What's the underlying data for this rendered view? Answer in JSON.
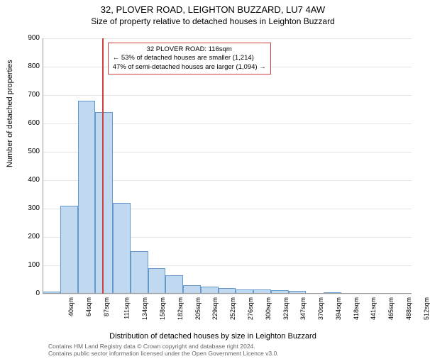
{
  "title": "32, PLOVER ROAD, LEIGHTON BUZZARD, LU7 4AW",
  "subtitle": "Size of property relative to detached houses in Leighton Buzzard",
  "ylabel": "Number of detached properties",
  "xlabel": "Distribution of detached houses by size in Leighton Buzzard",
  "license1": "Contains HM Land Registry data © Crown copyright and database right 2024.",
  "license2": "Contains public sector information licensed under the Open Government Licence v3.0.",
  "chart": {
    "type": "histogram",
    "ylim": [
      0,
      900
    ],
    "ytick_step": 100,
    "background_color": "#ffffff",
    "grid_color": "#e6e6e6",
    "axis_color": "#999999",
    "bar_fill": "#c0d8f0",
    "bar_stroke": "#6699cc",
    "bar_stroke_width": 1,
    "vline_color": "#d04040",
    "vline_x_value": 116,
    "callout_border": "#d04040",
    "callout_lines": [
      "32 PLOVER ROAD: 116sqm",
      "← 53% of detached houses are smaller (1,214)",
      "47% of semi-detached houses are larger (1,094) →"
    ],
    "x_categories": [
      "40sqm",
      "64sqm",
      "87sqm",
      "111sqm",
      "134sqm",
      "158sqm",
      "182sqm",
      "205sqm",
      "229sqm",
      "252sqm",
      "276sqm",
      "300sqm",
      "323sqm",
      "347sqm",
      "370sqm",
      "394sqm",
      "418sqm",
      "441sqm",
      "465sqm",
      "488sqm",
      "512sqm"
    ],
    "x_bounds": [
      40,
      512
    ],
    "bar_values": [
      8,
      310,
      680,
      640,
      320,
      150,
      90,
      65,
      30,
      25,
      20,
      15,
      15,
      12,
      10,
      0,
      5,
      0,
      3,
      0,
      0
    ]
  }
}
